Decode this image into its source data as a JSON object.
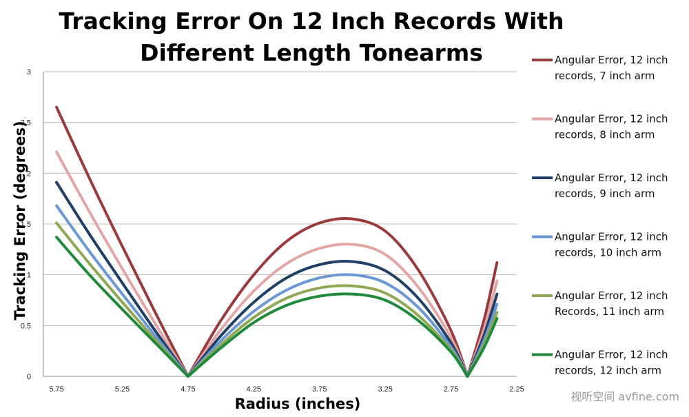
{
  "watermark": "视听空间 avfine.com",
  "chart_data": {
    "type": "line",
    "title_lines": [
      "Tracking Error On 12 Inch Records With",
      "Different Length Tonearms"
    ],
    "xlabel": "Radius (inches)",
    "ylabel": "Tracking Error (degrees)",
    "x_tick_labels": [
      "5.75",
      "5.25",
      "4.75",
      "4.25",
      "3.75",
      "3.25",
      "2.75",
      "2.25"
    ],
    "x_ticks": [
      5.75,
      5.25,
      4.75,
      4.25,
      3.75,
      3.25,
      2.75,
      2.25
    ],
    "x_reversed": true,
    "xlim": [
      5.85,
      2.25
    ],
    "y_tick_labels": [
      "0",
      "0.5",
      "1",
      "1.5",
      "2",
      "2.5",
      "3"
    ],
    "y_ticks": [
      0,
      0.5,
      1,
      1.5,
      2,
      2.5,
      3
    ],
    "ylim": [
      0,
      3
    ],
    "grid": "horizontal",
    "legend_position": "right",
    "series": [
      {
        "name": "Angular Error, 12 inch records, 7 inch arm",
        "color": "#9b3a3a",
        "x": [
          5.75,
          5.5,
          5.25,
          5.0,
          4.75,
          4.5,
          4.25,
          4.0,
          3.75,
          3.5,
          3.25,
          3.0,
          2.75,
          2.625,
          2.5,
          2.4
        ],
        "y": [
          2.65,
          1.95,
          1.28,
          0.63,
          0.0,
          0.55,
          1.0,
          1.33,
          1.51,
          1.55,
          1.43,
          1.05,
          0.45,
          0.0,
          0.55,
          1.12
        ]
      },
      {
        "name": "Angular Error, 12 inch records, 8 inch arm",
        "color": "#e3a6a4",
        "x": [
          5.75,
          5.5,
          5.25,
          5.0,
          4.75,
          4.5,
          4.25,
          4.0,
          3.75,
          3.5,
          3.25,
          3.0,
          2.75,
          2.625,
          2.5,
          2.4
        ],
        "y": [
          2.21,
          1.62,
          1.06,
          0.52,
          0.0,
          0.46,
          0.84,
          1.11,
          1.26,
          1.3,
          1.2,
          0.88,
          0.38,
          0.0,
          0.46,
          0.94
        ]
      },
      {
        "name": "Angular Error, 12 inch records, 9 inch arm",
        "color": "#1f3f66",
        "x": [
          5.75,
          5.5,
          5.25,
          5.0,
          4.75,
          4.5,
          4.25,
          4.0,
          3.75,
          3.5,
          3.25,
          3.0,
          2.75,
          2.625,
          2.5,
          2.4
        ],
        "y": [
          1.91,
          1.4,
          0.92,
          0.45,
          0.0,
          0.4,
          0.73,
          0.97,
          1.1,
          1.13,
          1.04,
          0.77,
          0.33,
          0.0,
          0.4,
          0.81
        ]
      },
      {
        "name": "Angular Error, 12 inch records, 10 inch arm",
        "color": "#6a98d4",
        "x": [
          5.75,
          5.5,
          5.25,
          5.0,
          4.75,
          4.5,
          4.25,
          4.0,
          3.75,
          3.5,
          3.25,
          3.0,
          2.75,
          2.625,
          2.5,
          2.4
        ],
        "y": [
          1.68,
          1.23,
          0.81,
          0.4,
          0.0,
          0.35,
          0.64,
          0.85,
          0.97,
          1.0,
          0.92,
          0.68,
          0.29,
          0.0,
          0.35,
          0.71
        ]
      },
      {
        "name": "Angular Error, 12 inch Records, 11 inch arm",
        "color": "#8ea854",
        "x": [
          5.75,
          5.5,
          5.25,
          5.0,
          4.75,
          4.5,
          4.25,
          4.0,
          3.75,
          3.5,
          3.25,
          3.0,
          2.75,
          2.625,
          2.5,
          2.4
        ],
        "y": [
          1.51,
          1.11,
          0.73,
          0.36,
          0.0,
          0.31,
          0.58,
          0.77,
          0.87,
          0.89,
          0.82,
          0.6,
          0.26,
          0.0,
          0.31,
          0.63
        ]
      },
      {
        "name": "Angular Error, 12 inch records, 12 inch arm",
        "color": "#1f8a3a",
        "x": [
          5.75,
          5.5,
          5.25,
          5.0,
          4.75,
          4.5,
          4.25,
          4.0,
          3.75,
          3.5,
          3.25,
          3.0,
          2.75,
          2.625,
          2.5,
          2.4
        ],
        "y": [
          1.37,
          1.0,
          0.66,
          0.33,
          0.0,
          0.28,
          0.53,
          0.7,
          0.79,
          0.81,
          0.75,
          0.55,
          0.24,
          0.0,
          0.28,
          0.57
        ]
      }
    ],
    "legend_lines": [
      [
        "Angular Error, 12 inch",
        "records, 7 inch arm"
      ],
      [
        "Angular Error, 12 inch",
        "records, 8 inch arm"
      ],
      [
        "Angular Error, 12 inch",
        "records, 9 inch arm"
      ],
      [
        "Angular Error, 12 inch",
        "records, 10 inch arm"
      ],
      [
        "Angular Error, 12 inch",
        "Records, 11 inch arm"
      ],
      [
        "Angular Error, 12 inch",
        "records, 12 inch arm"
      ]
    ]
  }
}
